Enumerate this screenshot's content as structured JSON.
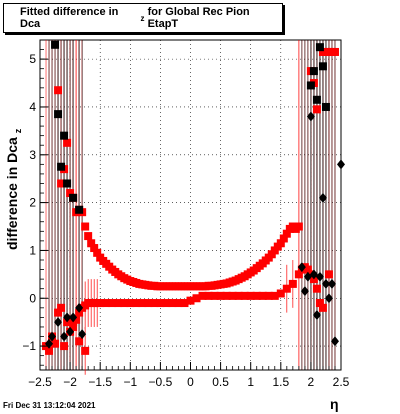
{
  "title": {
    "main": "Fitted difference in Dca",
    "sub": "z",
    "rest": "for Global Rec Pion EtapT"
  },
  "footer": {
    "timestamp": "Fri Dec 31 13:12:04 2021"
  },
  "chart_data": {
    "type": "scatter",
    "title": "Fitted difference in Dca_z for Global Rec Pion EtapT",
    "xlabel": "η",
    "ylabel": "difference in Dca_z",
    "xlim": [
      -2.5,
      2.5
    ],
    "ylim": [
      -1.5,
      5.4
    ],
    "xticks": [
      -2.5,
      -2,
      -1.5,
      -1,
      -0.5,
      0,
      0.5,
      1,
      1.5,
      2,
      2.5
    ],
    "xtick_labels": [
      "−2.5",
      "−2",
      "−1.5",
      "−1",
      "−0.5",
      "0",
      "0.5",
      "1",
      "1.5",
      "2",
      "2.5"
    ],
    "yticks": [
      -1,
      0,
      1,
      2,
      3,
      4,
      5
    ],
    "ytick_labels": [
      "−1",
      "0",
      "1",
      "2",
      "3",
      "4",
      "5"
    ],
    "grid": true,
    "series": [
      {
        "color": "#ff0000",
        "marker": "square",
        "points": [
          [
            -2.35,
            -1.1
          ],
          [
            -2.25,
            -0.95
          ],
          [
            -2.2,
            -0.3
          ],
          [
            -2.15,
            -0.2
          ],
          [
            -2.1,
            -1.0
          ],
          [
            -2.05,
            -0.5
          ],
          [
            -2.0,
            -0.7
          ],
          [
            -1.95,
            -0.6
          ],
          [
            -1.9,
            -0.45
          ],
          [
            -1.85,
            -0.3
          ],
          [
            -1.8,
            -0.2
          ],
          [
            -1.75,
            -0.15
          ],
          [
            -1.7,
            -0.1
          ],
          [
            -1.65,
            -0.1
          ],
          [
            -1.6,
            -0.1
          ],
          [
            -1.55,
            -0.1
          ],
          [
            -1.5,
            -0.1
          ],
          [
            -1.4,
            -0.1
          ],
          [
            -1.3,
            -0.1
          ],
          [
            -1.2,
            -0.1
          ],
          [
            -1.1,
            -0.1
          ],
          [
            -1.0,
            -0.1
          ],
          [
            -0.9,
            -0.1
          ],
          [
            -0.8,
            -0.1
          ],
          [
            -0.7,
            -0.1
          ],
          [
            -0.6,
            -0.1
          ],
          [
            -0.5,
            -0.1
          ],
          [
            -0.4,
            -0.1
          ],
          [
            -0.3,
            -0.1
          ],
          [
            -0.2,
            -0.1
          ],
          [
            -0.1,
            -0.1
          ],
          [
            0.0,
            -0.05
          ],
          [
            0.1,
            0.0
          ],
          [
            0.2,
            0.05
          ],
          [
            0.3,
            0.05
          ],
          [
            0.4,
            0.05
          ],
          [
            0.5,
            0.05
          ],
          [
            0.6,
            0.05
          ],
          [
            0.7,
            0.05
          ],
          [
            0.8,
            0.05
          ],
          [
            0.9,
            0.05
          ],
          [
            1.0,
            0.05
          ],
          [
            1.1,
            0.05
          ],
          [
            1.2,
            0.05
          ],
          [
            1.3,
            0.05
          ],
          [
            1.4,
            0.05
          ],
          [
            1.5,
            0.1
          ],
          [
            1.6,
            0.2
          ],
          [
            1.7,
            0.3
          ],
          [
            1.8,
            0.5
          ],
          [
            1.85,
            0.6
          ],
          [
            1.9,
            0.65
          ],
          [
            1.95,
            0.6
          ],
          [
            2.0,
            0.5
          ],
          [
            2.05,
            0.4
          ],
          [
            2.1,
            0.2
          ],
          [
            2.15,
            -0.1
          ],
          [
            2.2,
            -0.2
          ],
          [
            2.3,
            0.5
          ],
          [
            -1.8,
            1.8
          ],
          [
            -1.75,
            1.5
          ],
          [
            -1.7,
            1.3
          ],
          [
            -1.65,
            1.15
          ],
          [
            -1.6,
            1.05
          ],
          [
            -1.55,
            0.95
          ],
          [
            -1.5,
            0.85
          ],
          [
            -1.45,
            0.78
          ],
          [
            -1.4,
            0.72
          ],
          [
            -1.35,
            0.66
          ],
          [
            -1.3,
            0.6
          ],
          [
            -1.25,
            0.55
          ],
          [
            -1.2,
            0.5
          ],
          [
            -1.15,
            0.46
          ],
          [
            -1.1,
            0.42
          ],
          [
            -1.05,
            0.39
          ],
          [
            -1.0,
            0.36
          ],
          [
            -0.95,
            0.34
          ],
          [
            -0.9,
            0.32
          ],
          [
            -0.85,
            0.3
          ],
          [
            -0.8,
            0.29
          ],
          [
            -0.75,
            0.28
          ],
          [
            -0.7,
            0.27
          ],
          [
            -0.65,
            0.26
          ],
          [
            -0.6,
            0.26
          ],
          [
            -0.55,
            0.25
          ],
          [
            -0.5,
            0.25
          ],
          [
            -0.45,
            0.25
          ],
          [
            -0.4,
            0.25
          ],
          [
            -0.35,
            0.25
          ],
          [
            -0.3,
            0.25
          ],
          [
            -0.25,
            0.25
          ],
          [
            -0.2,
            0.25
          ],
          [
            -0.15,
            0.25
          ],
          [
            -0.1,
            0.25
          ],
          [
            -0.05,
            0.25
          ],
          [
            0.0,
            0.25
          ],
          [
            0.05,
            0.25
          ],
          [
            0.1,
            0.25
          ],
          [
            0.15,
            0.25
          ],
          [
            0.2,
            0.25
          ],
          [
            0.25,
            0.25
          ],
          [
            0.3,
            0.26
          ],
          [
            0.35,
            0.26
          ],
          [
            0.4,
            0.27
          ],
          [
            0.45,
            0.28
          ],
          [
            0.5,
            0.29
          ],
          [
            0.55,
            0.3
          ],
          [
            0.6,
            0.31
          ],
          [
            0.65,
            0.33
          ],
          [
            0.7,
            0.35
          ],
          [
            0.75,
            0.37
          ],
          [
            0.8,
            0.4
          ],
          [
            0.85,
            0.43
          ],
          [
            0.9,
            0.46
          ],
          [
            0.95,
            0.5
          ],
          [
            1.0,
            0.54
          ],
          [
            1.05,
            0.58
          ],
          [
            1.1,
            0.63
          ],
          [
            1.15,
            0.68
          ],
          [
            1.2,
            0.73
          ],
          [
            1.25,
            0.79
          ],
          [
            1.3,
            0.85
          ],
          [
            1.35,
            0.92
          ],
          [
            1.4,
            1.0
          ],
          [
            1.45,
            1.08
          ],
          [
            1.5,
            1.15
          ],
          [
            1.55,
            1.25
          ],
          [
            1.6,
            1.35
          ],
          [
            1.65,
            1.45
          ],
          [
            1.7,
            1.5
          ],
          [
            1.75,
            1.45
          ],
          [
            1.8,
            1.5
          ],
          [
            2.2,
            5.15
          ],
          [
            2.25,
            5.15
          ],
          [
            2.3,
            5.15
          ],
          [
            2.35,
            5.15
          ],
          [
            2.4,
            5.15
          ],
          [
            2.0,
            4.75
          ],
          [
            2.05,
            4.5
          ],
          [
            2.1,
            3.95
          ],
          [
            -2.2,
            4.35
          ],
          [
            -2.15,
            2.4
          ],
          [
            -2.1,
            2.7
          ],
          [
            -2.05,
            3.25
          ],
          [
            -2.0,
            2.2
          ],
          [
            -1.95,
            2.1
          ],
          [
            -1.9,
            1.8
          ],
          [
            -1.85,
            1.85
          ],
          [
            -2.4,
            -1.0
          ],
          [
            -2.3,
            -0.8
          ],
          [
            -1.95,
            -0.5
          ],
          [
            -1.85,
            -0.9
          ],
          [
            -1.75,
            -1.1
          ]
        ]
      },
      {
        "color": "#000000",
        "marker": "square",
        "points": [
          [
            -2.25,
            5.3
          ],
          [
            -2.2,
            3.85
          ],
          [
            -2.15,
            2.75
          ],
          [
            -2.1,
            3.4
          ],
          [
            -2.05,
            2.4
          ],
          [
            -1.95,
            2.1
          ],
          [
            -1.85,
            1.85
          ],
          [
            2.0,
            4.45
          ],
          [
            2.05,
            4.75
          ],
          [
            2.1,
            4.15
          ],
          [
            2.15,
            5.25
          ],
          [
            2.2,
            4.85
          ],
          [
            2.25,
            4.0
          ]
        ]
      },
      {
        "color": "#000000",
        "marker": "diamond",
        "points": [
          [
            -2.35,
            -0.95
          ],
          [
            -2.3,
            -0.8
          ],
          [
            -2.2,
            -0.5
          ],
          [
            -2.1,
            -0.8
          ],
          [
            -2.05,
            -0.4
          ],
          [
            -2.0,
            -0.7
          ],
          [
            -1.95,
            -0.4
          ],
          [
            -1.85,
            -0.2
          ],
          [
            -1.8,
            -0.75
          ],
          [
            1.85,
            0.65
          ],
          [
            1.9,
            0.15
          ],
          [
            1.95,
            0.45
          ],
          [
            2.0,
            3.8
          ],
          [
            2.05,
            0.5
          ],
          [
            2.1,
            -0.35
          ],
          [
            2.15,
            0.45
          ],
          [
            2.2,
            2.1
          ],
          [
            2.25,
            0.3
          ],
          [
            2.3,
            0.0
          ],
          [
            2.35,
            0.3
          ],
          [
            2.4,
            -0.9
          ],
          [
            2.5,
            2.8
          ]
        ]
      }
    ]
  }
}
